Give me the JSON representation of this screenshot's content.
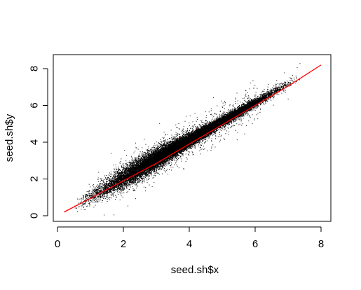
{
  "chart_data": {
    "type": "scatter",
    "title": "",
    "xlabel": "seed.sh$x",
    "ylabel": "seed.sh$y",
    "xlim": [
      0,
      8
    ],
    "ylim": [
      0,
      8
    ],
    "xticks": [
      0,
      2,
      4,
      6,
      8
    ],
    "yticks": [
      0,
      2,
      4,
      6,
      8
    ],
    "grid": false,
    "series": [
      {
        "kind": "points",
        "color": "#000000",
        "points_shown": 22000,
        "x_range": [
          0.3,
          7.5
        ],
        "density_note": "dense point cloud tightly following y ≈ x, widest spread (~±1) near x = 1.5–3"
      },
      {
        "kind": "fitted-line",
        "color": "#ff0000",
        "x": [
          0.2,
          1,
          2,
          3,
          4,
          5,
          6,
          7,
          8
        ],
        "y": [
          0.2,
          0.95,
          1.9,
          2.85,
          3.9,
          4.95,
          6.0,
          7.05,
          8.2
        ]
      }
    ]
  }
}
